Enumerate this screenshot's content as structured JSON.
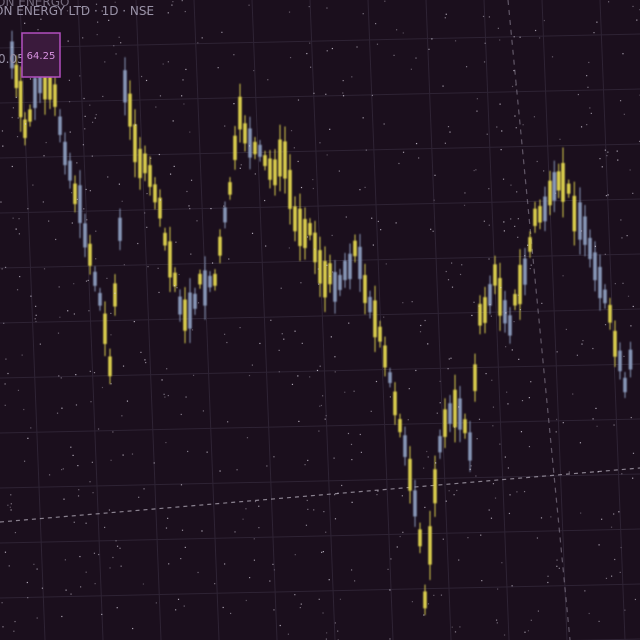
{
  "header": {
    "top_label": "ON ENERGO",
    "symbol_line": "ON ENERGY LTD · 1D · NSE",
    "left_value": "0.05",
    "price_badge": "64.25"
  }
}
